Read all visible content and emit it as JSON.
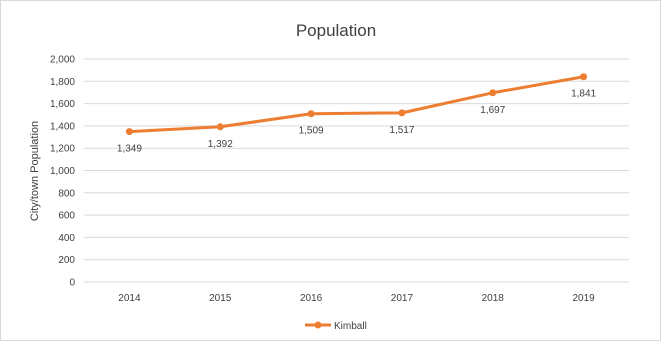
{
  "chart_data": {
    "type": "line",
    "title": "Population",
    "xlabel": "",
    "ylabel": "City/town Population",
    "categories": [
      "2014",
      "2015",
      "2016",
      "2017",
      "2018",
      "2019"
    ],
    "series": [
      {
        "name": "Kimball",
        "values": [
          1349,
          1392,
          1509,
          1517,
          1697,
          1841
        ],
        "color": "#ED7D31"
      }
    ],
    "data_labels": [
      "1,349",
      "1,392",
      "1,509",
      "1,517",
      "1,697",
      "1,841"
    ],
    "ylim": [
      0,
      2000
    ],
    "yticks": [
      0,
      200,
      400,
      600,
      800,
      1000,
      1200,
      1400,
      1600,
      1800,
      2000
    ],
    "ytick_labels": [
      "0",
      "200",
      "400",
      "600",
      "800",
      "1,000",
      "1,200",
      "1,400",
      "1,600",
      "1,800",
      "2,000"
    ],
    "grid": true,
    "legend_position": "bottom"
  }
}
